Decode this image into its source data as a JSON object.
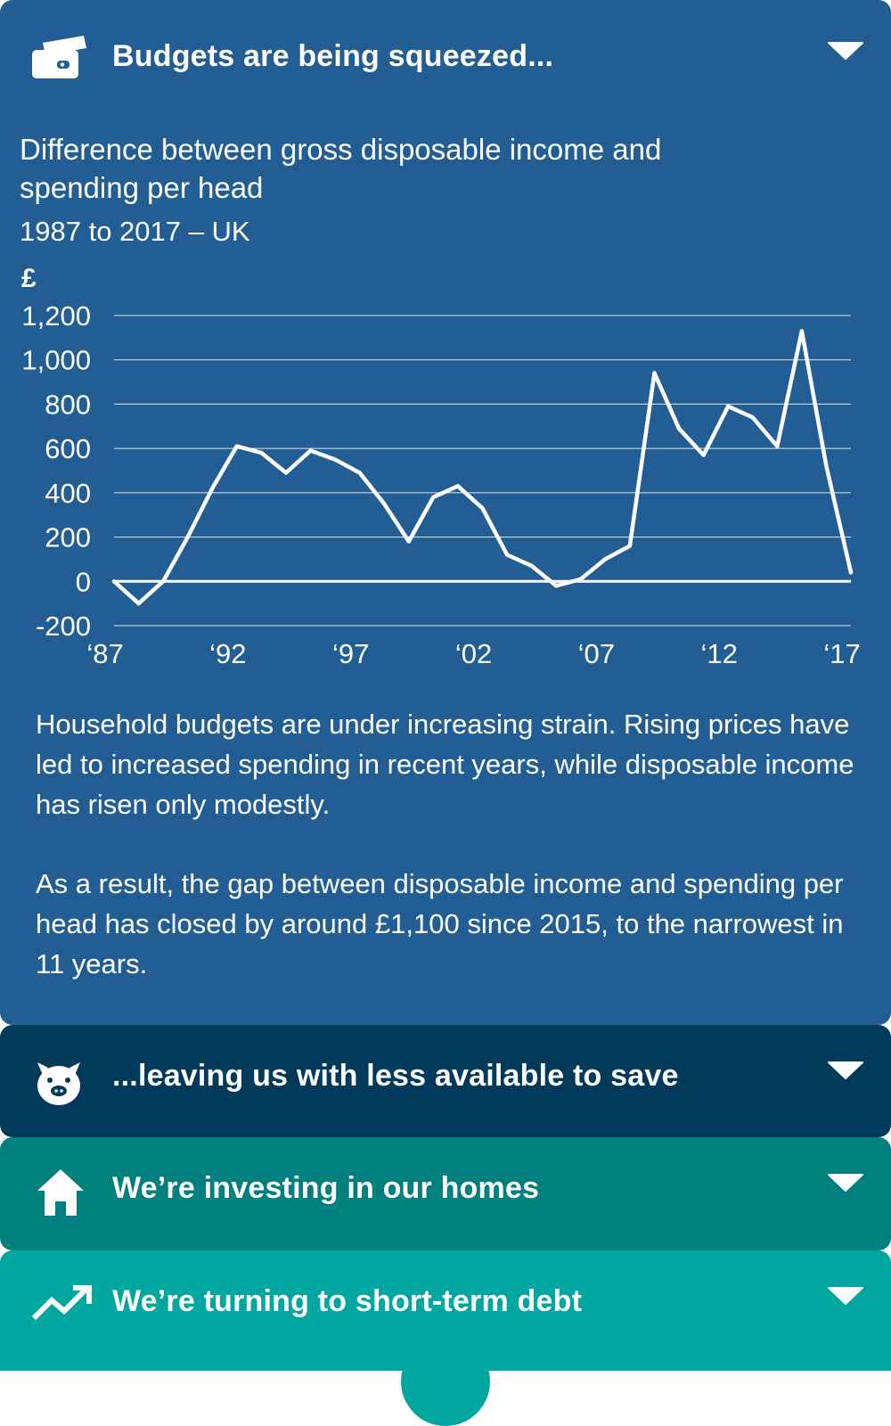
{
  "panels": {
    "budgets": {
      "title": "Budgets are being squeezed...",
      "icon": "wallet-icon",
      "color": "#225e93",
      "expanded": true
    },
    "save": {
      "title": "...leaving us with less available to save",
      "icon": "piggy-bank-icon",
      "color": "#003a5a",
      "expanded": false
    },
    "homes": {
      "title": "We’re investing in our homes",
      "icon": "house-icon",
      "color": "#007f7f",
      "expanded": false
    },
    "debt": {
      "title": "We’re turning to short-term debt",
      "icon": "trend-up-icon",
      "color": "#00a7a1",
      "expanded": false
    }
  },
  "chart_data": {
    "type": "line",
    "title": "Difference between gross disposable income and spending per head",
    "subtitle": "1987 to 2017 – UK",
    "ylabel": "£",
    "xlabel": "",
    "x": [
      1987,
      1988,
      1989,
      1990,
      1991,
      1992,
      1993,
      1994,
      1995,
      1996,
      1997,
      1998,
      1999,
      2000,
      2001,
      2002,
      2003,
      2004,
      2005,
      2006,
      2007,
      2008,
      2009,
      2010,
      2011,
      2012,
      2013,
      2014,
      2015,
      2016,
      2017
    ],
    "series": [
      {
        "values": [
          0,
          -100,
          0,
          200,
          420,
          610,
          580,
          490,
          590,
          550,
          490,
          350,
          180,
          380,
          430,
          330,
          120,
          70,
          -20,
          10,
          100,
          160,
          940,
          690,
          570,
          790,
          740,
          610,
          1130,
          520,
          40
        ]
      }
    ],
    "ylim": [
      -200,
      1200
    ],
    "yticks": [
      {
        "value": -200,
        "label": "-200"
      },
      {
        "value": 0,
        "label": "0"
      },
      {
        "value": 200,
        "label": "200"
      },
      {
        "value": 400,
        "label": "400"
      },
      {
        "value": 600,
        "label": "600"
      },
      {
        "value": 800,
        "label": "800"
      },
      {
        "value": 1000,
        "label": "1,000"
      },
      {
        "value": 1200,
        "label": "1,200"
      }
    ],
    "xticks": [
      {
        "value": 1987,
        "label": "‘87"
      },
      {
        "value": 1992,
        "label": "‘92"
      },
      {
        "value": 1997,
        "label": "‘97"
      },
      {
        "value": 2002,
        "label": "‘02"
      },
      {
        "value": 2007,
        "label": "‘07"
      },
      {
        "value": 2012,
        "label": "‘12"
      },
      {
        "value": 2017,
        "label": "‘17"
      }
    ],
    "grid": true,
    "line_color": "#ffffff"
  },
  "body": {
    "paragraph1": "Household budgets are under increasing strain. Rising prices have led to increased spending in recent years, while disposable income has risen only modestly.",
    "paragraph2": "As a result, the gap between disposable income and spending per head has closed by around £1,100 since 2015, to the narrowest in 11 years."
  }
}
